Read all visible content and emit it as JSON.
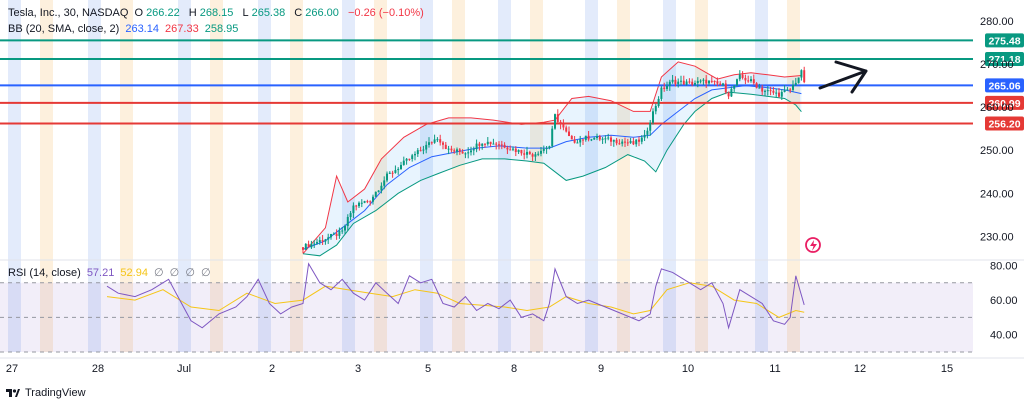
{
  "legend": {
    "symbol": "Tesla, Inc., 30, NASDAQ",
    "open_label": "O",
    "open": "266.22",
    "high_label": "H",
    "high": "268.15",
    "low_label": "L",
    "low": "265.38",
    "close_label": "C",
    "close": "266.00",
    "change": "−0.26 (−0.10%)",
    "bb_label": "BB (20, SMA, close, 2)",
    "bb_basis": "263.14",
    "bb_upper": "267.33",
    "bb_lower": "258.95",
    "rsi_label": "RSI (14, close)",
    "rsi_value": "57.21",
    "rsi_ma": "52.94",
    "rsi_na": [
      "∅",
      "∅",
      "∅",
      "∅"
    ]
  },
  "footer": {
    "brand": "TradingView"
  },
  "colors": {
    "up": "#089981",
    "down": "#f23645",
    "bb_basis": "#2962ff",
    "bb_upper": "#f23645",
    "bb_lower": "#089981",
    "rsi": "#7e57c2",
    "rsi_ma": "#f5c518",
    "session_blue": "#e3ebfb",
    "session_orange": "#fdf0dd",
    "level_green": "#089981",
    "level_blue": "#2962ff",
    "level_red": "#e53935"
  },
  "chart_data": {
    "type": "candlestick",
    "price_axis": {
      "ticks": [
        230,
        240,
        250,
        260,
        270,
        280
      ],
      "tick_labels": [
        "230.00",
        "240.00",
        "250.00",
        "260.00",
        "270.00",
        "280.00"
      ],
      "ylim": [
        225,
        283
      ]
    },
    "rsi_axis": {
      "ticks": [
        40,
        60,
        80
      ],
      "tick_labels": [
        "40.00",
        "60.00",
        "80.00"
      ],
      "ylim": [
        30,
        82
      ],
      "bands": [
        70,
        50,
        30
      ]
    },
    "x_ticks": [
      "27",
      "28",
      "Jul",
      "2",
      "3",
      "5",
      "8",
      "9",
      "10",
      "11",
      "12",
      "15"
    ],
    "horizontal_levels": [
      {
        "price": 275.48,
        "label": "275.48",
        "color": "level_green"
      },
      {
        "price": 271.18,
        "label": "271.18",
        "color": "level_green"
      },
      {
        "price": 265.06,
        "label": "265.06",
        "color": "level_blue"
      },
      {
        "price": 260.99,
        "label": "260.99",
        "color": "level_red"
      },
      {
        "price": 256.2,
        "label": "256.20",
        "color": "level_red"
      }
    ],
    "price_path": [
      [
        0,
        227.5
      ],
      [
        8,
        229.5
      ],
      [
        14,
        231
      ],
      [
        18,
        237
      ],
      [
        24,
        238.5
      ],
      [
        30,
        244
      ],
      [
        38,
        248
      ],
      [
        44,
        251
      ],
      [
        48,
        253
      ],
      [
        52,
        250
      ],
      [
        58,
        249.5
      ],
      [
        64,
        252
      ],
      [
        70,
        251.5
      ],
      [
        76,
        250
      ],
      [
        82,
        249
      ],
      [
        88,
        251
      ],
      [
        90,
        258
      ],
      [
        96,
        252
      ],
      [
        102,
        253
      ],
      [
        108,
        252.5
      ],
      [
        114,
        252
      ],
      [
        118,
        251.5
      ],
      [
        122,
        253
      ],
      [
        124,
        257
      ],
      [
        128,
        264
      ],
      [
        132,
        266
      ],
      [
        138,
        265.5
      ],
      [
        144,
        266
      ],
      [
        150,
        265
      ],
      [
        152,
        263
      ],
      [
        156,
        267
      ],
      [
        160,
        266
      ],
      [
        164,
        264
      ],
      [
        170,
        263
      ],
      [
        174,
        264
      ],
      [
        178,
        268
      ],
      [
        179,
        266
      ]
    ],
    "bb_upper_path": [
      [
        0,
        226
      ],
      [
        8,
        232
      ],
      [
        12,
        244
      ],
      [
        16,
        238
      ],
      [
        22,
        241
      ],
      [
        28,
        248
      ],
      [
        36,
        253
      ],
      [
        44,
        256
      ],
      [
        52,
        257.5
      ],
      [
        60,
        257.5
      ],
      [
        68,
        257
      ],
      [
        78,
        256
      ],
      [
        86,
        256.5
      ],
      [
        90,
        257
      ],
      [
        96,
        262
      ],
      [
        102,
        262.5
      ],
      [
        110,
        261.5
      ],
      [
        118,
        259
      ],
      [
        124,
        259
      ],
      [
        128,
        267
      ],
      [
        134,
        270.5
      ],
      [
        140,
        269.5
      ],
      [
        148,
        266.5
      ],
      [
        154,
        267.5
      ],
      [
        160,
        268
      ],
      [
        166,
        267.5
      ],
      [
        172,
        267
      ],
      [
        178,
        267.33
      ]
    ],
    "bb_basis_path": [
      [
        0,
        227
      ],
      [
        8,
        229
      ],
      [
        14,
        232
      ],
      [
        22,
        236
      ],
      [
        30,
        242
      ],
      [
        38,
        246
      ],
      [
        46,
        248.5
      ],
      [
        54,
        249.5
      ],
      [
        62,
        250.5
      ],
      [
        70,
        251
      ],
      [
        80,
        250.5
      ],
      [
        88,
        250.5
      ],
      [
        94,
        252
      ],
      [
        102,
        253
      ],
      [
        110,
        253.5
      ],
      [
        118,
        253
      ],
      [
        124,
        253.5
      ],
      [
        128,
        256
      ],
      [
        134,
        259
      ],
      [
        140,
        262
      ],
      [
        146,
        264
      ],
      [
        152,
        264.5
      ],
      [
        158,
        265
      ],
      [
        166,
        264.5
      ],
      [
        172,
        264
      ],
      [
        178,
        263.14
      ]
    ],
    "bb_lower_path": [
      [
        0,
        226
      ],
      [
        6,
        225.5
      ],
      [
        12,
        228
      ],
      [
        18,
        233
      ],
      [
        26,
        236
      ],
      [
        34,
        240
      ],
      [
        42,
        243
      ],
      [
        48,
        244.5
      ],
      [
        56,
        246.5
      ],
      [
        64,
        248
      ],
      [
        72,
        248
      ],
      [
        80,
        247.5
      ],
      [
        86,
        247
      ],
      [
        90,
        245
      ],
      [
        94,
        243
      ],
      [
        100,
        244
      ],
      [
        108,
        246
      ],
      [
        116,
        249
      ],
      [
        122,
        247.5
      ],
      [
        126,
        245
      ],
      [
        130,
        250
      ],
      [
        136,
        256
      ],
      [
        140,
        259
      ],
      [
        146,
        262
      ],
      [
        152,
        263.5
      ],
      [
        160,
        263
      ],
      [
        166,
        262.5
      ],
      [
        172,
        262
      ],
      [
        176,
        260.5
      ],
      [
        178,
        258.95
      ]
    ],
    "rsi_path": [
      [
        -70,
        68
      ],
      [
        -66,
        64
      ],
      [
        -60,
        62
      ],
      [
        -54,
        66
      ],
      [
        -48,
        72
      ],
      [
        -44,
        60
      ],
      [
        -40,
        48
      ],
      [
        -36,
        44
      ],
      [
        -30,
        52
      ],
      [
        -24,
        56
      ],
      [
        -20,
        62
      ],
      [
        -16,
        72
      ],
      [
        -12,
        58
      ],
      [
        -8,
        52
      ],
      [
        -4,
        56
      ],
      [
        0,
        58
      ],
      [
        2,
        81
      ],
      [
        6,
        70
      ],
      [
        10,
        66
      ],
      [
        14,
        72
      ],
      [
        18,
        64
      ],
      [
        22,
        60
      ],
      [
        26,
        70
      ],
      [
        30,
        64
      ],
      [
        34,
        58
      ],
      [
        38,
        74
      ],
      [
        42,
        70
      ],
      [
        46,
        72
      ],
      [
        50,
        58
      ],
      [
        54,
        56
      ],
      [
        58,
        62
      ],
      [
        62,
        54
      ],
      [
        66,
        58
      ],
      [
        70,
        55
      ],
      [
        74,
        60
      ],
      [
        78,
        50
      ],
      [
        82,
        52
      ],
      [
        86,
        48
      ],
      [
        88,
        58
      ],
      [
        90,
        78
      ],
      [
        94,
        62
      ],
      [
        98,
        58
      ],
      [
        102,
        60
      ],
      [
        108,
        56
      ],
      [
        114,
        52
      ],
      [
        120,
        48
      ],
      [
        124,
        52
      ],
      [
        126,
        68
      ],
      [
        128,
        78
      ],
      [
        132,
        76
      ],
      [
        138,
        70
      ],
      [
        142,
        66
      ],
      [
        146,
        70
      ],
      [
        150,
        58
      ],
      [
        152,
        44
      ],
      [
        156,
        66
      ],
      [
        160,
        62
      ],
      [
        164,
        58
      ],
      [
        168,
        48
      ],
      [
        172,
        46
      ],
      [
        174,
        50
      ],
      [
        176,
        74
      ],
      [
        179,
        57.21
      ]
    ],
    "rsi_ma_path": [
      [
        -70,
        62
      ],
      [
        -60,
        60
      ],
      [
        -50,
        66
      ],
      [
        -40,
        56
      ],
      [
        -30,
        54
      ],
      [
        -20,
        64
      ],
      [
        -10,
        58
      ],
      [
        0,
        60
      ],
      [
        8,
        68
      ],
      [
        16,
        66
      ],
      [
        24,
        64
      ],
      [
        32,
        62
      ],
      [
        40,
        66
      ],
      [
        48,
        64
      ],
      [
        56,
        58
      ],
      [
        64,
        57
      ],
      [
        72,
        56
      ],
      [
        80,
        54
      ],
      [
        88,
        56
      ],
      [
        94,
        62
      ],
      [
        102,
        58
      ],
      [
        110,
        56
      ],
      [
        118,
        52
      ],
      [
        124,
        54
      ],
      [
        130,
        66
      ],
      [
        138,
        70
      ],
      [
        146,
        68
      ],
      [
        154,
        60
      ],
      [
        162,
        58
      ],
      [
        170,
        50
      ],
      [
        176,
        54
      ],
      [
        179,
        52.94
      ]
    ]
  }
}
